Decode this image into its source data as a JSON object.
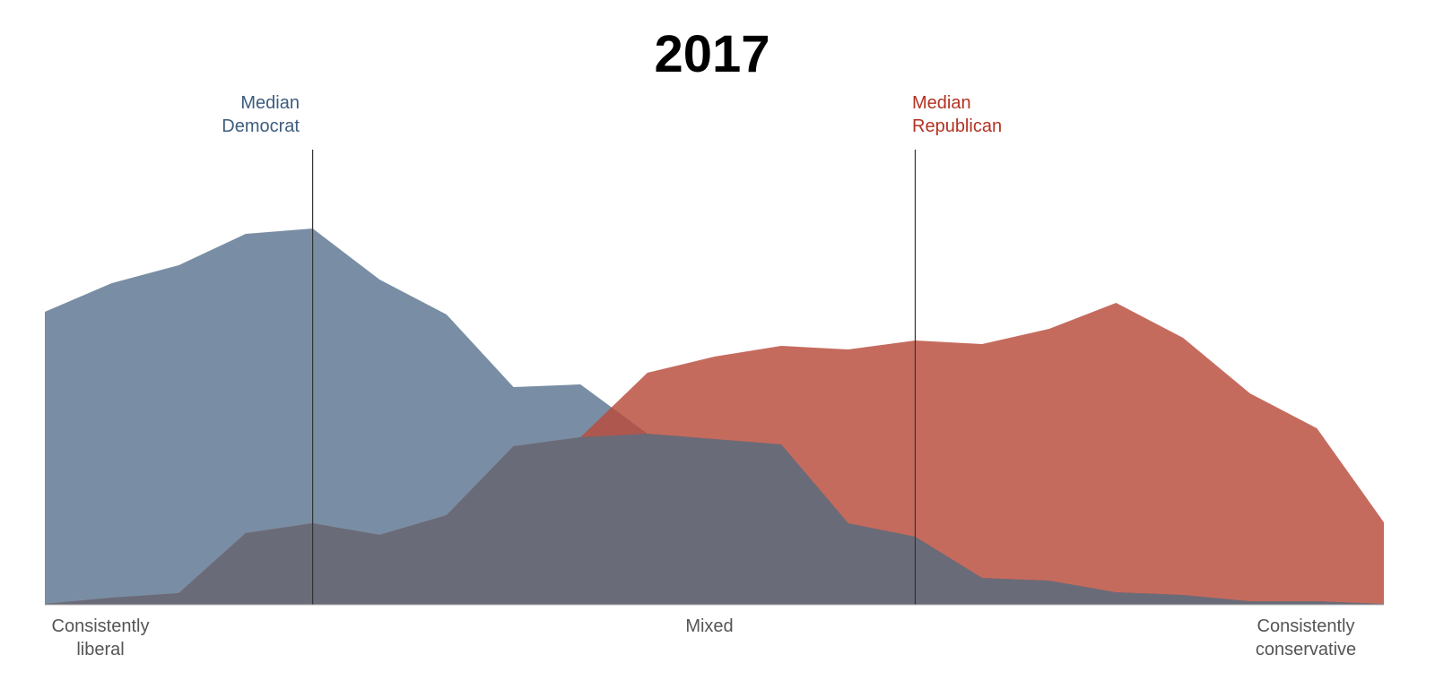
{
  "chart_data": {
    "type": "area",
    "title": "2017",
    "x": [
      1,
      2,
      3,
      4,
      5,
      6,
      7,
      8,
      9,
      10,
      11,
      12,
      13,
      14,
      15,
      16,
      17,
      18,
      19,
      20,
      21
    ],
    "series": [
      {
        "name": "Democrat",
        "color": "#5b7590",
        "values": [
          3.27,
          3.59,
          3.79,
          4.14,
          4.2,
          3.63,
          3.24,
          2.43,
          2.46,
          1.91,
          1.85,
          1.79,
          0.91,
          0.76,
          0.3,
          0.27,
          0.14,
          0.11,
          0.04,
          0.04,
          0.01
        ]
      },
      {
        "name": "Republican",
        "color": "#b84a3a",
        "values": [
          0.01,
          0.08,
          0.13,
          0.8,
          0.91,
          0.78,
          1.0,
          1.77,
          1.87,
          2.59,
          2.77,
          2.89,
          2.85,
          2.95,
          2.91,
          3.08,
          3.37,
          2.98,
          2.36,
          1.97,
          0.92
        ]
      }
    ],
    "overlap_color": "#6a6b78",
    "ylim": [
      0,
      5.1
    ],
    "medians": [
      {
        "label_line1": "Median",
        "label_line2": "Democrat",
        "x": 5,
        "color": "#3e5c7e"
      },
      {
        "label_line1": "Median",
        "label_line2": "Republican",
        "x": 14,
        "color": "#b33222"
      }
    ],
    "x_labels": {
      "left_line1": "Consistently",
      "left_line2": "liberal",
      "center": "Mixed",
      "right_line1": "Consistently",
      "right_line2": "conservative"
    },
    "grid": false,
    "legend": "none"
  }
}
